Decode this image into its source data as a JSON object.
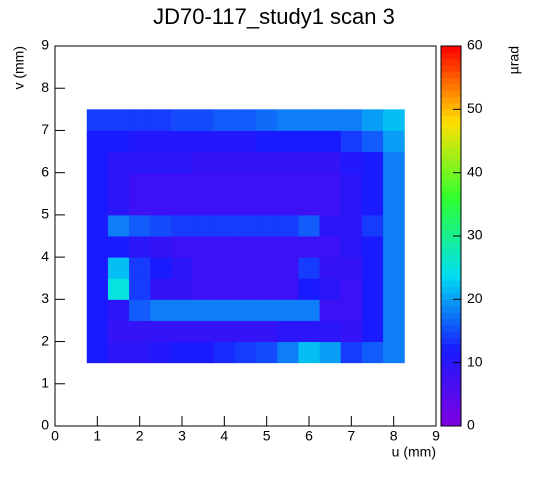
{
  "chart_data": {
    "type": "heatmap",
    "title": "JD70-117_study1 scan 3",
    "x_label": "u (mm)",
    "y_label": "v (mm)",
    "z_label": "µrad",
    "x_bins": [
      0.75,
      1.25,
      1.75,
      2.25,
      2.75,
      3.25,
      3.75,
      4.25,
      4.75,
      5.25,
      5.75,
      6.25,
      6.75,
      7.25,
      7.75,
      8.25
    ],
    "y_bins": [
      1.5,
      2.0,
      2.5,
      3.0,
      3.5,
      4.0,
      4.5,
      5.0,
      5.5,
      6.0,
      6.5,
      7.0,
      7.5
    ],
    "z": [
      [
        12,
        10,
        10,
        11,
        12,
        12,
        13,
        14,
        15,
        18,
        22,
        20,
        14,
        16,
        18
      ],
      [
        12,
        9,
        9,
        9,
        9,
        9,
        9,
        9,
        9,
        10,
        10,
        10,
        9,
        12,
        18
      ],
      [
        12,
        10,
        16,
        18,
        18,
        18,
        18,
        18,
        18,
        18,
        18,
        8,
        8,
        12,
        18
      ],
      [
        12,
        25,
        14,
        9,
        9,
        8,
        8,
        8,
        8,
        8,
        12,
        10,
        8,
        12,
        18
      ],
      [
        12,
        22,
        14,
        12,
        10,
        8,
        8,
        8,
        8,
        8,
        14,
        9,
        9,
        12,
        18
      ],
      [
        12,
        12,
        10,
        9,
        8,
        8,
        8,
        8,
        8,
        8,
        8,
        8,
        10,
        12,
        18
      ],
      [
        12,
        18,
        16,
        15,
        14,
        14,
        14,
        14,
        14,
        14,
        16,
        10,
        10,
        14,
        18
      ],
      [
        12,
        10,
        8,
        8,
        8,
        8,
        8,
        8,
        8,
        8,
        8,
        8,
        10,
        12,
        18
      ],
      [
        12,
        10,
        8,
        8,
        8,
        8,
        8,
        8,
        8,
        8,
        8,
        8,
        10,
        12,
        18
      ],
      [
        12,
        10,
        10,
        10,
        10,
        9,
        9,
        9,
        9,
        9,
        9,
        9,
        11,
        12,
        18
      ],
      [
        12,
        12,
        11,
        11,
        11,
        11,
        11,
        11,
        12,
        12,
        12,
        12,
        14,
        16,
        20
      ],
      [
        14,
        14,
        14,
        14,
        15,
        15,
        16,
        16,
        17,
        18,
        18,
        18,
        18,
        20,
        22
      ]
    ],
    "xlim": [
      0,
      9
    ],
    "xticks": [
      0,
      1,
      2,
      3,
      4,
      5,
      6,
      7,
      8,
      9
    ],
    "ylim": [
      0,
      9
    ],
    "yticks": [
      0,
      1,
      2,
      3,
      4,
      5,
      6,
      7,
      8,
      9
    ],
    "zlim": [
      0,
      60
    ],
    "zticks": [
      0,
      10,
      20,
      30,
      40,
      50,
      60
    ],
    "colors": [
      "#8000e0",
      "#1a1aff",
      "#00e0f0",
      "#30ff30",
      "#ffe000",
      "#ff0000"
    ]
  }
}
